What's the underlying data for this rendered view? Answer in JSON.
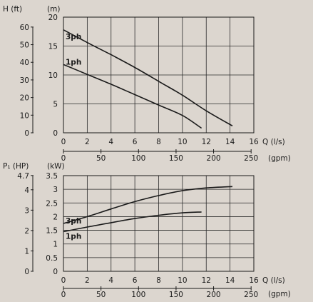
{
  "colors": {
    "background": "#dcd6cf",
    "ink": "#1a1a1a",
    "grid": "#2a2a2a"
  },
  "chart_data": [
    {
      "type": "line",
      "ylabel_left": "H (ft)",
      "ylabel_right": "(m)",
      "xlabel_primary": "Q (l/s)",
      "xlabel_secondary": "(gpm)",
      "xlim": [
        0,
        16
      ],
      "ylim": [
        0,
        20
      ],
      "x_ticks": [
        0,
        2,
        4,
        6,
        8,
        10,
        12,
        14,
        16
      ],
      "y_ticks": [
        0,
        5,
        10,
        15,
        20
      ],
      "left_axis_ticks": [
        {
          "label": "0",
          "value": 0
        },
        {
          "label": "10",
          "value": 3.048
        },
        {
          "label": "20",
          "value": 6.096
        },
        {
          "label": "30",
          "value": 9.144
        },
        {
          "label": "40",
          "value": 12.192
        },
        {
          "label": "50",
          "value": 15.24
        },
        {
          "label": "60",
          "value": 18.288
        }
      ],
      "gpm_axis_ticks": [
        {
          "label": "0",
          "value": 0
        },
        {
          "label": "50",
          "value": 3.1545
        },
        {
          "label": "100",
          "value": 6.309
        },
        {
          "label": "150",
          "value": 9.4635
        },
        {
          "label": "200",
          "value": 12.618
        },
        {
          "label": "250",
          "value": 15.7725
        }
      ],
      "grid": true,
      "series": [
        {
          "name": "3ph",
          "x": [
            0,
            2,
            4,
            6,
            8,
            10,
            12,
            14.2
          ],
          "y": [
            17.8,
            15.6,
            13.5,
            11.3,
            8.9,
            6.5,
            3.8,
            1.2
          ]
        },
        {
          "name": "1ph",
          "x": [
            0,
            2,
            4,
            6,
            8,
            10,
            11.6
          ],
          "y": [
            11.8,
            10.1,
            8.4,
            6.6,
            4.8,
            3.0,
            0.8
          ]
        }
      ]
    },
    {
      "type": "line",
      "ylabel_left": "P₁ (HP)",
      "ylabel_right": "(kW)",
      "xlabel_primary": "Q (l/s)",
      "xlabel_secondary": "(gpm)",
      "xlim": [
        0,
        16
      ],
      "ylim": [
        0,
        3.5
      ],
      "x_ticks": [
        0,
        2,
        4,
        6,
        8,
        10,
        12,
        14,
        16
      ],
      "y_ticks": [
        0,
        0.5,
        1,
        1.5,
        2,
        2.5,
        3,
        3.5
      ],
      "left_axis_ticks": [
        {
          "label": "0",
          "value": 0
        },
        {
          "label": "1",
          "value": 0.7457
        },
        {
          "label": "2",
          "value": 1.4914
        },
        {
          "label": "3",
          "value": 2.2371
        },
        {
          "label": "4",
          "value": 2.9828
        },
        {
          "label": "4.7",
          "value": 3.5048
        }
      ],
      "gpm_axis_ticks": [
        {
          "label": "0",
          "value": 0
        },
        {
          "label": "50",
          "value": 3.1545
        },
        {
          "label": "100",
          "value": 6.309
        },
        {
          "label": "150",
          "value": 9.4635
        },
        {
          "label": "200",
          "value": 12.618
        },
        {
          "label": "250",
          "value": 15.7725
        }
      ],
      "grid": true,
      "series": [
        {
          "name": "3ph",
          "x": [
            0,
            2,
            4,
            6,
            8,
            10,
            12,
            14.2
          ],
          "y": [
            1.75,
            2.0,
            2.28,
            2.55,
            2.77,
            2.95,
            3.05,
            3.1
          ]
        },
        {
          "name": "1ph",
          "x": [
            0,
            2,
            4,
            6,
            8,
            10,
            11.6
          ],
          "y": [
            1.45,
            1.62,
            1.78,
            1.93,
            2.05,
            2.14,
            2.17
          ]
        }
      ]
    }
  ]
}
